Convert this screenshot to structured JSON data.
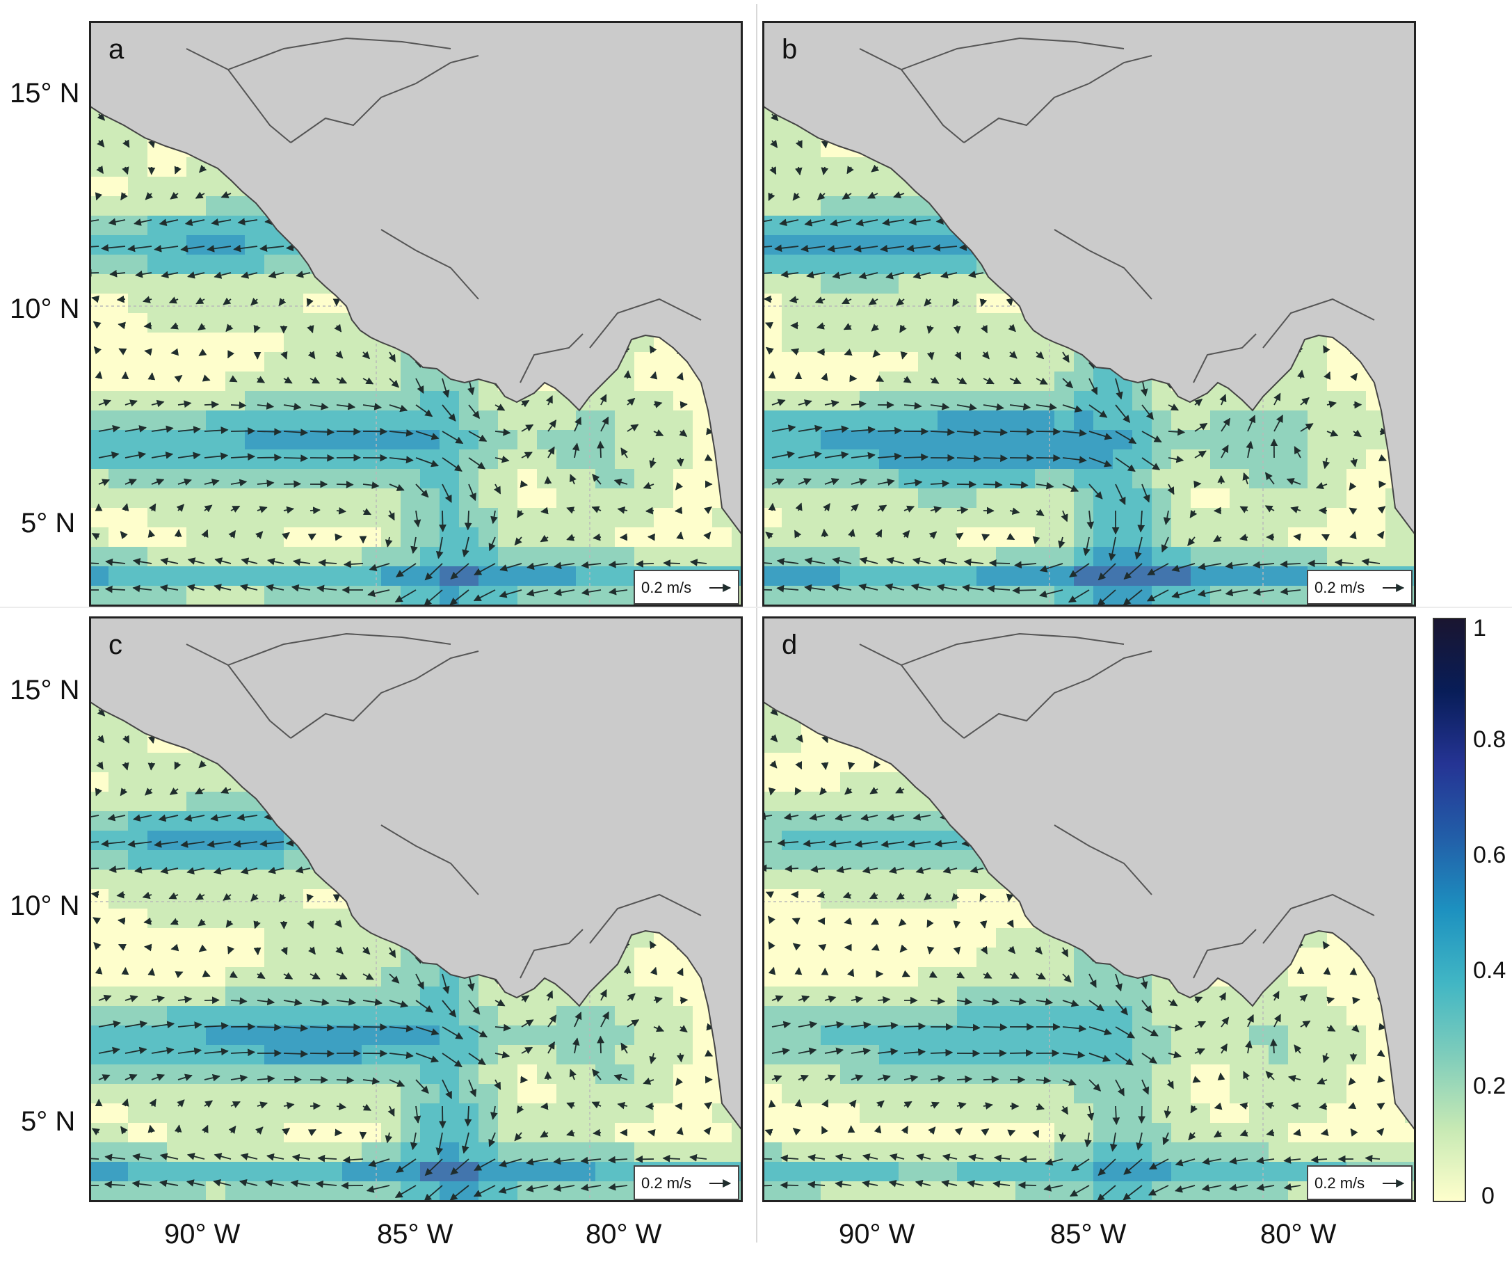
{
  "panels": [
    {
      "id": "a",
      "label": "a",
      "scale_label": "0.2 m/s"
    },
    {
      "id": "b",
      "label": "b",
      "scale_label": "0.2 m/s"
    },
    {
      "id": "c",
      "label": "c",
      "scale_label": "0.2 m/s"
    },
    {
      "id": "d",
      "label": "d",
      "scale_label": "0.2 m/s"
    }
  ],
  "latitude_labels": [
    "15° N",
    "10° N",
    "5° N"
  ],
  "longitude_labels": [
    "90° W",
    "85° W",
    "80° W"
  ],
  "colorbar": {
    "ticks": [
      "1",
      "0.8",
      "0.6",
      "0.4",
      "0.2",
      "0"
    ],
    "range": [
      0,
      1
    ],
    "colors": [
      "#ffffcc",
      "#c7e9b4",
      "#7fcdbb",
      "#41b6c4",
      "#1d91c0",
      "#225ea8",
      "#253494",
      "#081d58",
      "#1a1530"
    ]
  },
  "map": {
    "land_color": "#cbcbcb",
    "ocean_low_color": "#fbfbcf",
    "ocean_high_color": "#1b6f8c",
    "arrow_color": "#1f2d2d",
    "gridline_color": "#b9b9b9"
  }
}
